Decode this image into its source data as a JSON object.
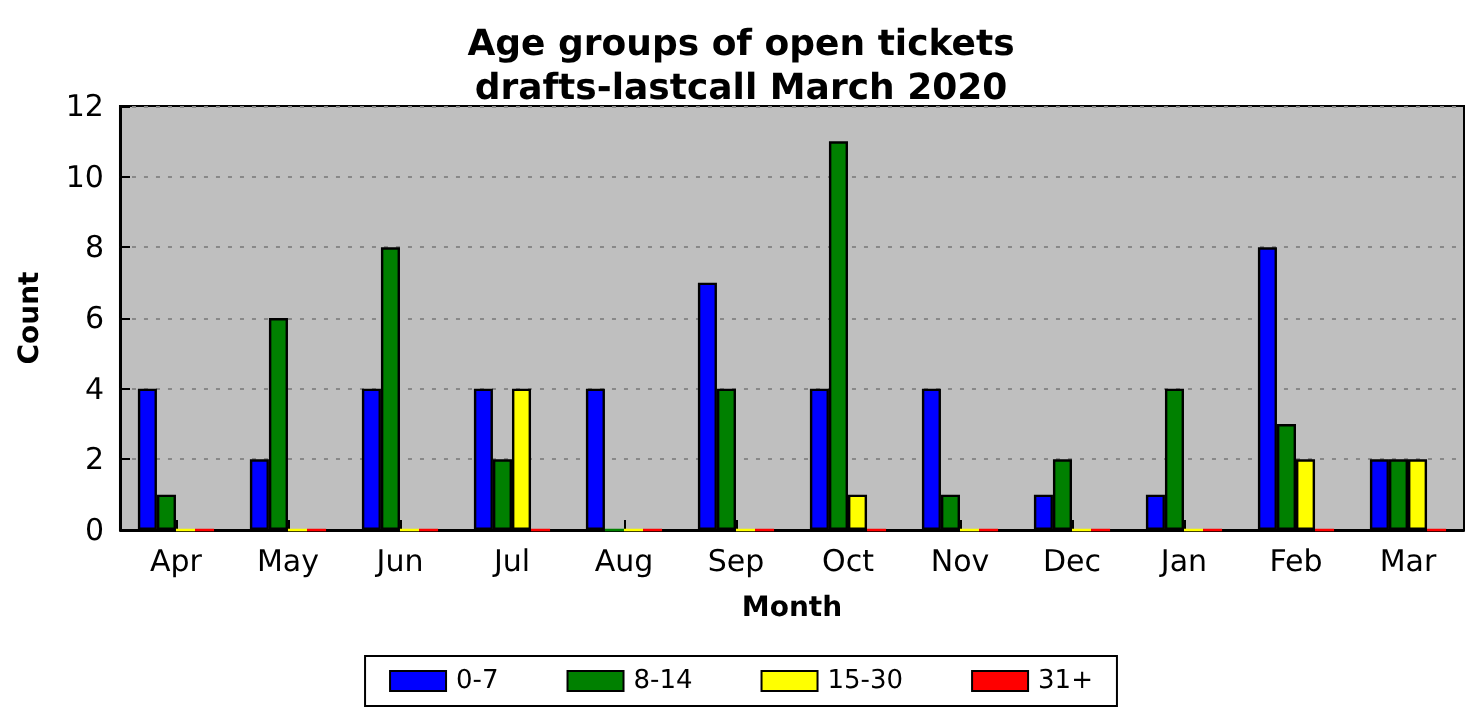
{
  "chart_data": {
    "type": "bar",
    "title": "Age groups of open tickets\ndrafts-lastcall March 2020",
    "xlabel": "Month",
    "ylabel": "Count",
    "categories": [
      "Apr",
      "May",
      "Jun",
      "Jul",
      "Aug",
      "Sep",
      "Oct",
      "Nov",
      "Dec",
      "Jan",
      "Feb",
      "Mar"
    ],
    "series": [
      {
        "name": "0-7",
        "color": "#0000ff",
        "values": [
          4,
          2,
          4,
          4,
          4,
          7,
          4,
          4,
          1,
          1,
          8,
          2
        ]
      },
      {
        "name": "8-14",
        "color": "#008000",
        "values": [
          1,
          6,
          8,
          2,
          0,
          4,
          11,
          1,
          2,
          4,
          3,
          2
        ]
      },
      {
        "name": "15-30",
        "color": "#ffff00",
        "values": [
          0,
          0,
          0,
          4,
          0,
          0,
          1,
          0,
          0,
          0,
          2,
          2
        ]
      },
      {
        "name": "31+",
        "color": "#ff0000",
        "values": [
          0,
          0,
          0,
          0,
          0,
          0,
          0,
          0,
          0,
          0,
          0,
          0
        ]
      }
    ],
    "ylim": [
      0,
      12
    ],
    "yticks": [
      0,
      2,
      4,
      6,
      8,
      10,
      12
    ],
    "grid": "y",
    "legend": "bottom"
  }
}
